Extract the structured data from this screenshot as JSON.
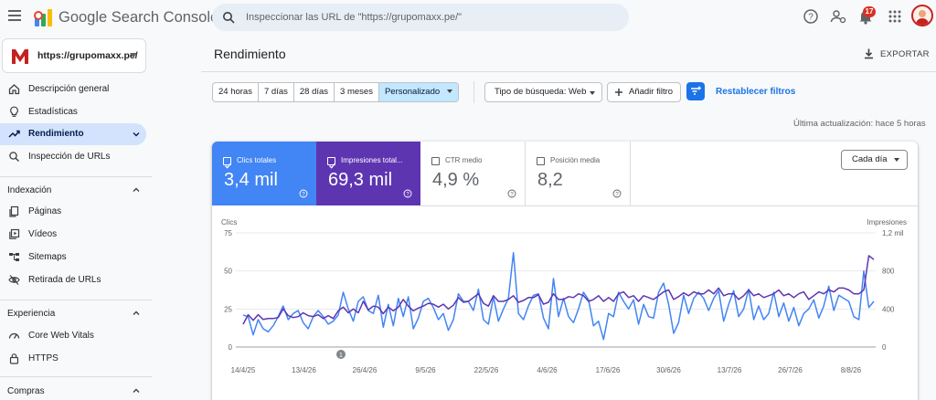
{
  "app": {
    "brand": "Google Search Console",
    "search_placeholder": "Inspeccionar las URL de \"https://grupomaxx.pe/\"",
    "notifications_count": "17"
  },
  "sidebar": {
    "property": "https://grupomaxx.pe/",
    "items": [
      {
        "label": "Descripción general",
        "icon": "home-icon"
      },
      {
        "label": "Estadísticas",
        "icon": "lightbulb-icon"
      },
      {
        "label": "Rendimiento",
        "icon": "trending-up-icon",
        "active": true
      },
      {
        "label": "Inspección de URLs",
        "icon": "search-icon"
      }
    ],
    "sections": [
      {
        "label": "Indexación",
        "items": [
          {
            "label": "Páginas",
            "icon": "pages-icon"
          },
          {
            "label": "Vídeos",
            "icon": "video-icon"
          },
          {
            "label": "Sitemaps",
            "icon": "sitemap-icon"
          },
          {
            "label": "Retirada de URLs",
            "icon": "eye-off-icon"
          }
        ]
      },
      {
        "label": "Experiencia",
        "items": [
          {
            "label": "Core Web Vitals",
            "icon": "gauge-icon"
          },
          {
            "label": "HTTPS",
            "icon": "lock-icon"
          }
        ]
      },
      {
        "label": "Compras",
        "items": []
      }
    ]
  },
  "main": {
    "title": "Rendimiento",
    "export_label": "EXPORTAR",
    "ranges": [
      "24 horas",
      "7 días",
      "28 días",
      "3 meses",
      "Personalizado"
    ],
    "selected_range": "Personalizado",
    "search_type": "Tipo de búsqueda: Web",
    "add_filter": "Añadir filtro",
    "reset_filters": "Restablecer filtros",
    "last_update": "Última actualización: hace 5 horas"
  },
  "metrics": [
    {
      "label": "Clics totales",
      "value": "3,4 mil",
      "checked": true,
      "color": "#4285f4"
    },
    {
      "label": "Impresiones total...",
      "value": "69,3 mil",
      "checked": true,
      "color": "#5e35b1"
    },
    {
      "label": "CTR medio",
      "value": "4,9 %",
      "checked": false
    },
    {
      "label": "Posición media",
      "value": "8,2",
      "checked": false
    }
  ],
  "granularity": "Cada día",
  "annotation_marker": "1",
  "chart_data": {
    "type": "line",
    "left_axis": {
      "label": "Clics",
      "ticks": [
        "75",
        "50",
        "25",
        "0"
      ],
      "range": [
        0,
        75
      ]
    },
    "right_axis": {
      "label": "Impresiones",
      "ticks": [
        "1,2 mil",
        "800",
        "400",
        "0"
      ],
      "range": [
        0,
        1200
      ]
    },
    "x_ticks": [
      "14/4/25",
      "13/4/26",
      "26/4/26",
      "9/5/26",
      "22/5/26",
      "4/6/26",
      "17/6/26",
      "30/6/26",
      "13/7/26",
      "26/7/26",
      "8/8/26"
    ],
    "series": [
      {
        "name": "Clics totales",
        "color": "#4285f4",
        "axis": "left",
        "values": [
          21,
          20,
          8,
          18,
          12,
          10,
          14,
          20,
          27,
          18,
          22,
          24,
          16,
          12,
          20,
          24,
          20,
          15,
          17,
          21,
          36,
          25,
          17,
          30,
          33,
          24,
          22,
          34,
          13,
          28,
          14,
          32,
          20,
          33,
          12,
          19,
          30,
          32,
          26,
          18,
          22,
          11,
          18,
          35,
          30,
          30,
          24,
          38,
          18,
          15,
          33,
          17,
          25,
          32,
          62,
          22,
          18,
          27,
          34,
          35,
          19,
          12,
          45,
          20,
          32,
          20,
          16,
          25,
          36,
          31,
          14,
          17,
          5,
          22,
          20,
          36,
          30,
          25,
          31,
          15,
          28,
          20,
          19,
          36,
          42,
          28,
          9,
          16,
          34,
          22,
          32,
          36,
          32,
          24,
          32,
          37,
          17,
          28,
          37,
          20,
          25,
          38,
          18,
          27,
          18,
          22,
          36,
          20,
          29,
          17,
          26,
          14,
          22,
          25,
          31,
          19,
          27,
          40,
          24,
          34,
          32,
          30,
          20,
          18,
          50,
          26,
          30
        ]
      },
      {
        "name": "Impresiones totales",
        "color": "#5e35b1",
        "axis": "right",
        "values": [
          240,
          340,
          280,
          340,
          290,
          300,
          300,
          310,
          400,
          330,
          310,
          320,
          360,
          330,
          320,
          340,
          300,
          330,
          300,
          380,
          420,
          360,
          400,
          360,
          480,
          390,
          430,
          420,
          350,
          420,
          380,
          420,
          500,
          430,
          380,
          410,
          430,
          460,
          450,
          420,
          450,
          400,
          440,
          520,
          470,
          480,
          520,
          560,
          460,
          430,
          540,
          480,
          480,
          500,
          540,
          470,
          490,
          520,
          520,
          550,
          450,
          470,
          560,
          500,
          500,
          530,
          520,
          560,
          540,
          480,
          500,
          540,
          480,
          520,
          480,
          560,
          580,
          520,
          540,
          480,
          540,
          520,
          500,
          540,
          580,
          600,
          500,
          530,
          570,
          540,
          580,
          560,
          560,
          600,
          560,
          620,
          540,
          560,
          560,
          500,
          540,
          600,
          540,
          560,
          520,
          540,
          560,
          600,
          540,
          560,
          520,
          560,
          580,
          500,
          540,
          580,
          560,
          600,
          580,
          620,
          620,
          600,
          560,
          560,
          600,
          960,
          920
        ]
      }
    ]
  }
}
